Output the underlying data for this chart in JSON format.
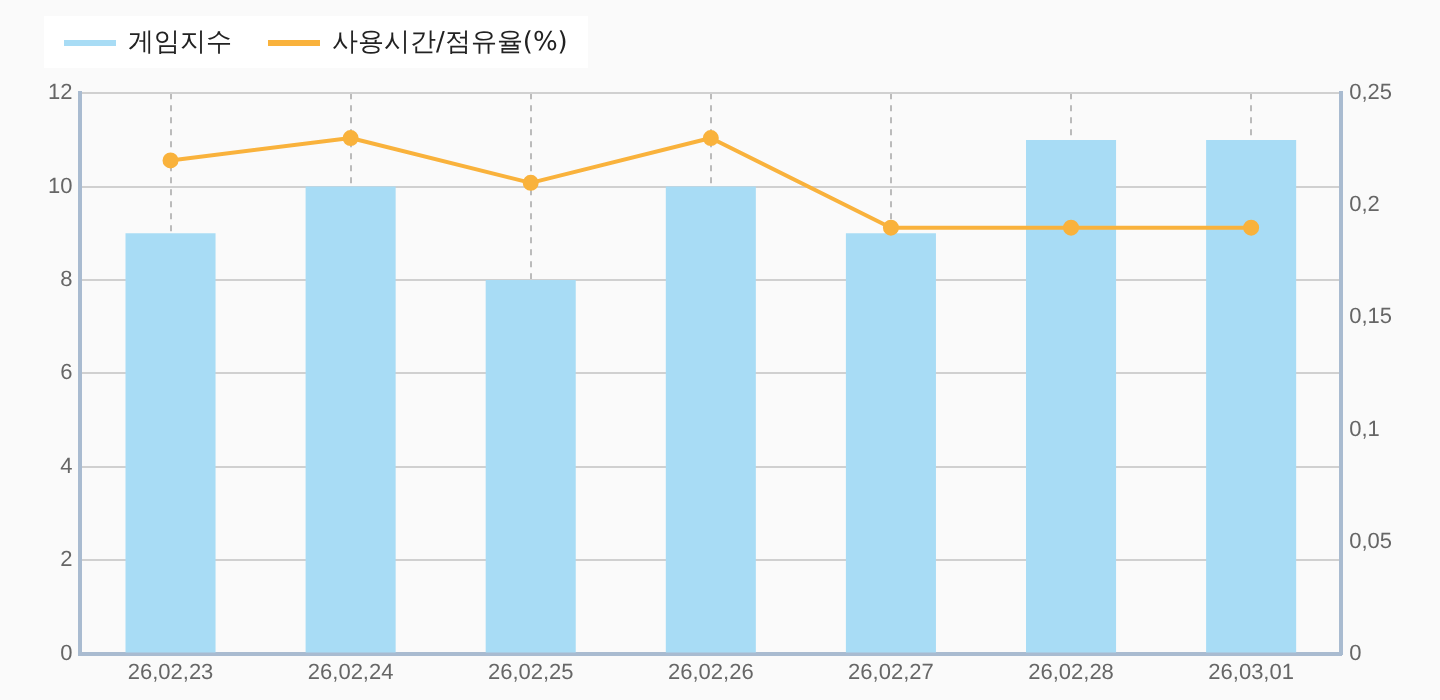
{
  "chart_data": {
    "type": "bar",
    "categories": [
      "26,02,23",
      "26,02,24",
      "26,02,25",
      "26,02,26",
      "26,02,27",
      "26,02,28",
      "26,03,01"
    ],
    "series": [
      {
        "name": "게임지수",
        "color": "#a8dcf5",
        "values": [
          9,
          10,
          8,
          10,
          9,
          11,
          11
        ]
      },
      {
        "name": "사용시간/점유율(%)",
        "type": "line",
        "axis": "y2",
        "color": "#f9b23c",
        "values": [
          0.22,
          0.23,
          0.21,
          0.23,
          0.19,
          0.19,
          0.19
        ]
      }
    ],
    "ylim": [
      0,
      12
    ],
    "yticks": [
      0,
      2,
      4,
      6,
      8,
      10,
      12
    ],
    "y2lim": [
      0,
      0.25
    ],
    "y2ticks": [
      {
        "value": 0,
        "label": "0"
      },
      {
        "value": 0.05,
        "label": "0,05"
      },
      {
        "value": 0.1,
        "label": "0,1"
      },
      {
        "value": 0.15,
        "label": "0,15"
      },
      {
        "value": 0.2,
        "label": "0,2"
      },
      {
        "value": 0.25,
        "label": "0,25"
      }
    ],
    "grid": true,
    "legend": "top left",
    "marker": "circle"
  }
}
